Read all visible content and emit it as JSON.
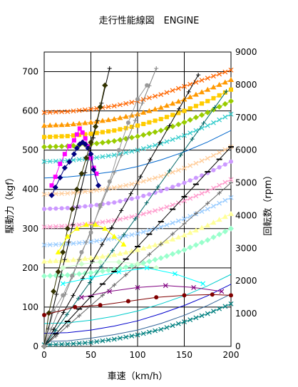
{
  "chart_data": {
    "type": "line",
    "title": "走行性能線図　ENGINE",
    "xlabel": "車速（km/h）",
    "ylabel": "駆動力（kgf）",
    "y2label": "回転数（rpm）",
    "xlim": [
      0,
      200
    ],
    "ylim": [
      0,
      750
    ],
    "y2lim": [
      0,
      9000
    ],
    "xticks": [
      0,
      50,
      100,
      150,
      200
    ],
    "yticks": [
      0,
      100,
      200,
      300,
      400,
      500,
      600,
      700
    ],
    "y2ticks": [
      0,
      1000,
      2000,
      3000,
      4000,
      5000,
      6000,
      7000,
      8000,
      9000
    ],
    "grid": true,
    "series_drive_force": [
      {
        "color": "#ff00ff",
        "marker": "square",
        "x": [
          8,
          12,
          17,
          22,
          27,
          32,
          35,
          38,
          41,
          44,
          47,
          50,
          53,
          56
        ],
        "y": [
          410,
          432,
          465,
          490,
          510,
          525,
          540,
          555,
          545,
          530,
          510,
          480,
          455,
          440
        ]
      },
      {
        "color": "#000080",
        "marker": "diamond",
        "x": [
          8,
          12,
          17,
          22,
          27,
          32,
          35,
          38,
          41,
          44,
          47,
          50,
          53,
          58
        ],
        "y": [
          385,
          405,
          430,
          455,
          470,
          490,
          505,
          515,
          520,
          515,
          505,
          490,
          450,
          410
        ]
      },
      {
        "color": "#333300",
        "marker": "diamond",
        "x": [
          0,
          5,
          10,
          15,
          20,
          25,
          30,
          35,
          40,
          45,
          50,
          55,
          60,
          65
        ],
        "y": [
          0,
          85,
          140,
          190,
          240,
          300,
          350,
          400,
          440,
          480,
          520,
          560,
          610,
          665
        ]
      },
      {
        "color": "#999999",
        "marker": "circle",
        "x": [
          0,
          10,
          20,
          30,
          40,
          50,
          60,
          70,
          80,
          90,
          100,
          110
        ],
        "y": [
          0,
          90,
          130,
          180,
          240,
          290,
          360,
          420,
          500,
          570,
          630,
          665
        ]
      },
      {
        "color": "#ffff00",
        "marker": "triangle",
        "x": [
          15,
          25,
          35,
          45,
          55,
          65,
          75,
          85
        ],
        "y": [
          240,
          280,
          300,
          310,
          310,
          300,
          280,
          260
        ]
      },
      {
        "color": "#ccffcc",
        "marker": "diamond",
        "x": [
          20,
          40,
          60,
          80,
          100,
          120
        ],
        "y": [
          200,
          210,
          215,
          215,
          210,
          200
        ]
      },
      {
        "color": "#00ffff",
        "marker": "x",
        "x": [
          20,
          50,
          80,
          110,
          140,
          170
        ],
        "y": [
          160,
          175,
          190,
          200,
          185,
          160
        ]
      },
      {
        "color": "#800080",
        "marker": "x",
        "x": [
          40,
          70,
          100,
          130,
          160,
          190
        ],
        "y": [
          125,
          140,
          150,
          155,
          150,
          140
        ]
      },
      {
        "color": "#800000",
        "marker": "circle",
        "x": [
          0,
          33,
          60,
          90,
          120,
          150,
          180,
          200
        ],
        "y": [
          80,
          100,
          105,
          115,
          125,
          130,
          132,
          130
        ]
      }
    ],
    "series_rpm": [
      {
        "color": "#ff6600",
        "marker": "x",
        "x": [
          0,
          25,
          50,
          75,
          100,
          125,
          150,
          175,
          200
        ],
        "y": [
          7150,
          7180,
          7250,
          7350,
          7500,
          7700,
          7950,
          8200,
          8450
        ]
      },
      {
        "color": "#ff9900",
        "marker": "triangle",
        "x": [
          0,
          25,
          50,
          75,
          100,
          125,
          150,
          175,
          200
        ],
        "y": [
          6750,
          6780,
          6850,
          6950,
          7100,
          7300,
          7550,
          7850,
          8150
        ]
      },
      {
        "color": "#ffcc00",
        "marker": "square",
        "x": [
          0,
          25,
          50,
          75,
          100,
          125,
          150,
          175,
          200
        ],
        "y": [
          6400,
          6430,
          6500,
          6600,
          6750,
          6950,
          7200,
          7500,
          7850
        ]
      },
      {
        "color": "#99cc00",
        "marker": "diamond",
        "x": [
          0,
          25,
          50,
          75,
          100,
          125,
          150,
          175,
          200
        ],
        "y": [
          6100,
          6120,
          6180,
          6280,
          6420,
          6600,
          6850,
          7150,
          7500
        ]
      },
      {
        "color": "#33cccc",
        "marker": "x",
        "x": [
          0,
          25,
          50,
          75,
          100,
          125,
          150,
          175,
          200
        ],
        "y": [
          5650,
          5680,
          5750,
          5850,
          6000,
          6200,
          6450,
          6750,
          7100
        ]
      },
      {
        "color": "#0066cc",
        "marker": "",
        "x": [
          0,
          25,
          50,
          75,
          100,
          125,
          150,
          175,
          200
        ],
        "y": [
          5150,
          5180,
          5250,
          5350,
          5500,
          5700,
          5950,
          6250,
          6600
        ]
      },
      {
        "color": "#ffcc99",
        "marker": "x",
        "x": [
          0,
          25,
          50,
          75,
          100,
          125,
          150,
          175,
          200
        ],
        "y": [
          4650,
          4680,
          4750,
          4850,
          5000,
          5200,
          5450,
          5750,
          6100
        ]
      },
      {
        "color": "#cc99ff",
        "marker": "circle",
        "x": [
          0,
          25,
          50,
          75,
          100,
          125,
          150,
          175,
          200
        ],
        "y": [
          4200,
          4230,
          4300,
          4400,
          4550,
          4750,
          5000,
          5300,
          5650
        ]
      },
      {
        "color": "#ff99cc",
        "marker": "x",
        "x": [
          0,
          25,
          50,
          75,
          100,
          125,
          150,
          175,
          200
        ],
        "y": [
          3650,
          3680,
          3750,
          3850,
          4000,
          4200,
          4450,
          4750,
          5100
        ]
      },
      {
        "color": "#99ccff",
        "marker": "x",
        "x": [
          0,
          25,
          50,
          75,
          100,
          125,
          150,
          175,
          200
        ],
        "y": [
          3100,
          3130,
          3200,
          3300,
          3450,
          3650,
          3900,
          4200,
          4550
        ]
      },
      {
        "color": "#ffff99",
        "marker": "triangle",
        "x": [
          0,
          25,
          50,
          75,
          100,
          125,
          150,
          175,
          200
        ],
        "y": [
          2600,
          2630,
          2700,
          2800,
          2950,
          3150,
          3400,
          3700,
          4050
        ]
      },
      {
        "color": "#99ffcc",
        "marker": "diamond",
        "x": [
          0,
          25,
          50,
          75,
          100,
          125,
          150,
          175,
          200
        ],
        "y": [
          2150,
          2180,
          2250,
          2350,
          2500,
          2700,
          2950,
          3250,
          3600
        ]
      },
      {
        "color": "#0000cc",
        "marker": "",
        "x": [
          0,
          25,
          50,
          75,
          100,
          125,
          150,
          175,
          200
        ],
        "y": [
          400,
          420,
          500,
          620,
          780,
          1000,
          1250,
          1550,
          1900
        ]
      },
      {
        "color": "#00cccc",
        "marker": "",
        "x": [
          0,
          25,
          50,
          75,
          100,
          125,
          150,
          175,
          200
        ],
        "y": [
          700,
          720,
          800,
          920,
          1080,
          1300,
          1550,
          1850,
          2200
        ]
      },
      {
        "color": "#336699",
        "marker": "",
        "x": [
          0,
          25,
          50,
          75,
          100,
          125,
          150,
          175,
          200
        ],
        "y": [
          150,
          170,
          250,
          360,
          500,
          700,
          950,
          1250,
          1600
        ]
      },
      {
        "color": "#008080",
        "marker": "x",
        "x": [
          0,
          25,
          50,
          75,
          100,
          125,
          150,
          175,
          200
        ],
        "y": [
          50,
          70,
          120,
          220,
          350,
          520,
          750,
          1000,
          1300
        ]
      }
    ],
    "series_gear_lines": [
      {
        "color": "#000000",
        "marker": "plus",
        "x": [
          0,
          70
        ],
        "y": [
          0,
          8500
        ]
      },
      {
        "color": "#808080",
        "marker": "plus",
        "x": [
          0,
          120
        ],
        "y": [
          0,
          8500
        ]
      },
      {
        "color": "#000000",
        "marker": "plus",
        "x": [
          0,
          165
        ],
        "y": [
          0,
          8300
        ]
      },
      {
        "color": "#006666",
        "marker": "plus",
        "x": [
          0,
          195
        ],
        "y": [
          0,
          7800
        ]
      },
      {
        "color": "#000000",
        "marker": "dash",
        "x": [
          0,
          200
        ],
        "y": [
          0,
          6100
        ]
      },
      {
        "color": "#666666",
        "marker": "plus",
        "x": [
          0,
          200
        ],
        "y": [
          0,
          5000
        ]
      }
    ]
  }
}
